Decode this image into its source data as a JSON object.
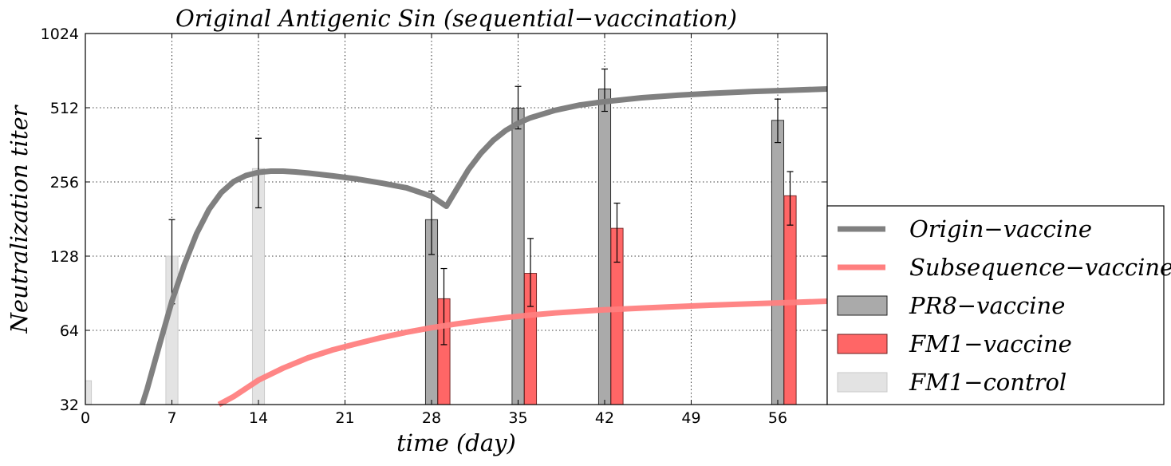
{
  "chart_data": {
    "type": "bar+line",
    "title": "Original Antigenic Sin (sequential−vaccination)",
    "xlabel": "time (day)",
    "ylabel": "Neutralization titer",
    "xlim": [
      0,
      60
    ],
    "ylim": [
      32,
      1024
    ],
    "y_scale": "log2",
    "x_ticks": [
      0,
      7,
      14,
      21,
      28,
      35,
      42,
      49,
      56
    ],
    "y_ticks": [
      32,
      64,
      128,
      256,
      512,
      1024
    ],
    "grid": true,
    "legend_position": "right",
    "lines": [
      {
        "name": "Origin−vaccine",
        "color": "#808080",
        "x": [
          4.6,
          5,
          6,
          7,
          8,
          9,
          10,
          11,
          12,
          13,
          14,
          15,
          16,
          17,
          18,
          20,
          22,
          24,
          26,
          28,
          29.2,
          30,
          31,
          32,
          33,
          34,
          35,
          36,
          38,
          40,
          42,
          45,
          48,
          51,
          54,
          57,
          60
        ],
        "y": [
          32,
          37,
          56,
          84,
          118,
          158,
          198,
          232,
          257,
          272,
          280,
          283,
          283,
          281,
          278,
          271,
          263,
          253,
          242,
          224,
          204,
          238,
          288,
          335,
          378,
          414,
          443,
          466,
          500,
          525,
          542,
          562,
          576,
          587,
          596,
          603,
          610
        ]
      },
      {
        "name": "Subsequence−vaccine",
        "color": "#ff7f7f",
        "x": [
          10.8,
          12,
          14,
          16,
          18,
          20,
          22,
          24,
          26,
          28,
          30,
          32,
          34,
          36,
          38,
          40,
          42,
          45,
          48,
          51,
          54,
          57,
          60
        ],
        "y": [
          32,
          34.5,
          40.2,
          45.0,
          49.5,
          53.3,
          56.6,
          59.9,
          62.9,
          65.6,
          68.0,
          70.2,
          72.1,
          73.8,
          75.3,
          76.5,
          77.5,
          78.8,
          80.0,
          81.1,
          82.1,
          83.0,
          84.0
        ]
      }
    ],
    "bar_series": [
      {
        "name": "PR8−vaccine",
        "color": "#aaaaaa",
        "x": [
          28,
          35,
          42,
          56
        ],
        "values": [
          180,
          510,
          610,
          455
        ],
        "err_low": [
          130,
          420,
          495,
          370
        ],
        "err_high": [
          235,
          625,
          735,
          555
        ]
      },
      {
        "name": "FM1−vaccine",
        "color": "#ff6666",
        "x": [
          29,
          36,
          43,
          57
        ],
        "values": [
          86,
          109,
          166,
          225
        ],
        "err_low": [
          56,
          80,
          121,
          171
        ],
        "err_high": [
          114,
          151,
          210,
          282
        ]
      },
      {
        "name": "FM1−control",
        "color": "#e3e3e3",
        "x": [
          0,
          7,
          14
        ],
        "values": [
          40,
          128,
          290
        ],
        "err_low": [
          null,
          82,
          201
        ],
        "err_high": [
          null,
          180,
          385
        ]
      }
    ]
  }
}
